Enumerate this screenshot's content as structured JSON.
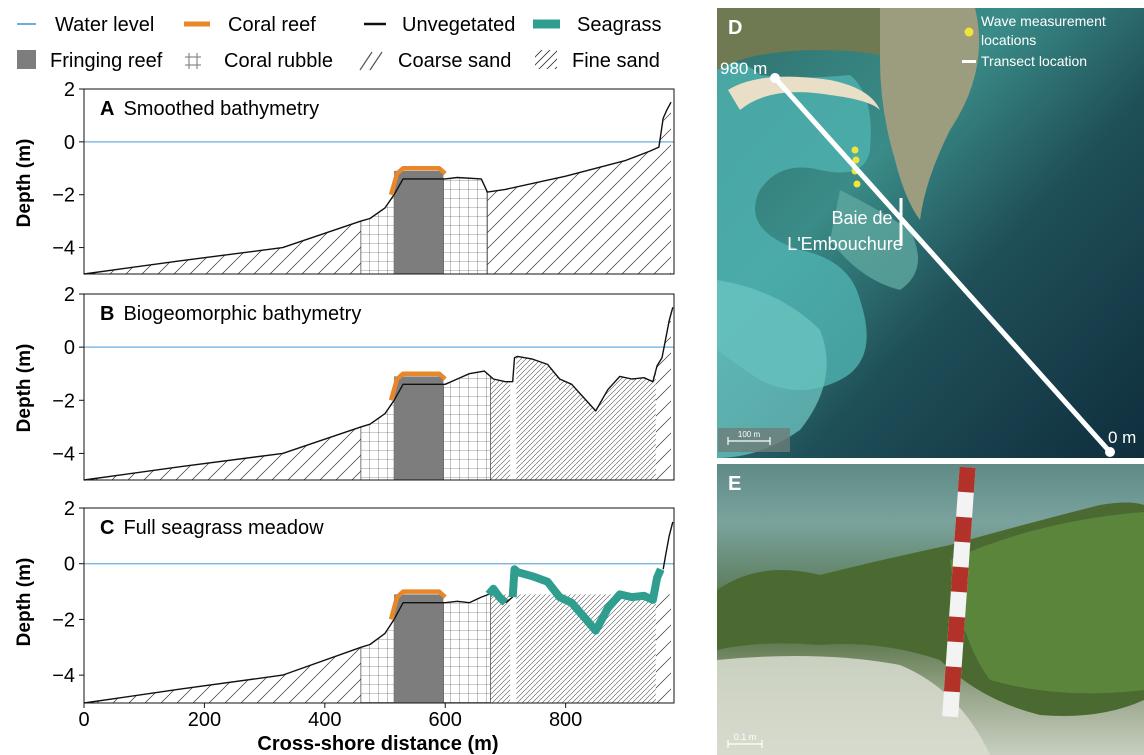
{
  "legend": {
    "water_level": "Water level",
    "coral_reef": "Coral reef",
    "unvegetated": "Unvegetated",
    "seagrass": "Seagrass",
    "fringing_reef": "Fringing reef",
    "coral_rubble": "Coral rubble",
    "coarse_sand": "Coarse sand",
    "fine_sand": "Fine sand"
  },
  "colors": {
    "water": "#6aaedc",
    "coral": "#e8872a",
    "unvegetated": "#111111",
    "seagrass": "#2f9e8f",
    "fringing": "#7d7d7d"
  },
  "axes": {
    "ylabel": "Depth (m)",
    "xlabel": "Cross-shore distance (m)",
    "xticks": [
      "0",
      "200",
      "400",
      "600",
      "800"
    ],
    "yticks": [
      "2",
      "0",
      "−2",
      "−4"
    ]
  },
  "photos": {
    "d": {
      "letter": "D",
      "legend_wave": "Wave measurement",
      "legend_wave2": "locations",
      "legend_transect": "Transect location",
      "label_980": "980 m",
      "label_0": "0 m",
      "place_line1": "Baie de",
      "place_line2": "L'Embouchure",
      "scale": "100 m"
    },
    "e": {
      "letter": "E",
      "scale": "0.1 m"
    }
  },
  "chart_data": [
    {
      "type": "line",
      "panel": "A",
      "title": "Smoothed bathymetry",
      "xlabel": "Cross-shore distance (m)",
      "ylabel": "Depth (m)",
      "xlim": [
        0,
        980
      ],
      "ylim": [
        -5,
        2
      ],
      "water_level": 0,
      "series": [
        {
          "name": "Unvegetated",
          "x": [
            0,
            160,
            330,
            460,
            475,
            500,
            515,
            530,
            600,
            620,
            660,
            670,
            700,
            800,
            900,
            940,
            955,
            962,
            968,
            975
          ],
          "y": [
            -5,
            -4.5,
            -4,
            -3,
            -2.9,
            -2.5,
            -2,
            -1.4,
            -1.4,
            -1.35,
            -1.4,
            -1.9,
            -1.8,
            -1.3,
            -0.7,
            -0.35,
            -0.2,
            0.9,
            1.2,
            1.5
          ]
        },
        {
          "name": "Coral reef",
          "x": [
            510,
            520,
            530,
            590,
            600
          ],
          "y": [
            -2,
            -1.2,
            -1,
            -1,
            -1.2
          ]
        }
      ],
      "zones": [
        {
          "type": "Coarse sand",
          "from": 0,
          "to": 460
        },
        {
          "type": "Coral rubble",
          "from": 460,
          "to": 515
        },
        {
          "type": "Fringing reef",
          "from": 515,
          "to": 597
        },
        {
          "type": "Coral rubble",
          "from": 597,
          "to": 670
        },
        {
          "type": "Coarse sand",
          "from": 670,
          "to": 975
        }
      ]
    },
    {
      "type": "line",
      "panel": "B",
      "title": "Biogeomorphic bathymetry",
      "xlabel": "Cross-shore distance (m)",
      "ylabel": "Depth (m)",
      "xlim": [
        0,
        980
      ],
      "ylim": [
        -5,
        2
      ],
      "water_level": 0,
      "series": [
        {
          "name": "Unvegetated",
          "x": [
            0,
            160,
            330,
            460,
            475,
            500,
            515,
            530,
            600,
            620,
            640,
            665,
            680,
            700,
            712,
            715,
            720,
            745,
            770,
            790,
            810,
            830,
            850,
            870,
            890,
            910,
            930,
            945,
            952,
            960,
            966,
            972,
            978
          ],
          "y": [
            -5,
            -4.5,
            -4,
            -3,
            -2.9,
            -2.5,
            -2,
            -1.4,
            -1.4,
            -1.2,
            -1,
            -0.9,
            -1.2,
            -1.3,
            -1.3,
            -0.4,
            -0.35,
            -0.45,
            -0.65,
            -1.2,
            -1.4,
            -1.9,
            -2.4,
            -1.6,
            -1.1,
            -1.2,
            -1.15,
            -1.3,
            -0.7,
            -0.4,
            0.3,
            1.0,
            1.5
          ]
        },
        {
          "name": "Coral reef",
          "x": [
            510,
            520,
            530,
            590,
            600
          ],
          "y": [
            -2,
            -1.2,
            -1,
            -1,
            -1.2
          ]
        }
      ],
      "zones": [
        {
          "type": "Coarse sand",
          "from": 0,
          "to": 460
        },
        {
          "type": "Coral rubble",
          "from": 460,
          "to": 515
        },
        {
          "type": "Fringing reef",
          "from": 515,
          "to": 597
        },
        {
          "type": "Coral rubble",
          "from": 597,
          "to": 675
        },
        {
          "type": "Fine sand",
          "from": 675,
          "to": 708
        },
        {
          "type": "Fine sand",
          "from": 718,
          "to": 950
        },
        {
          "type": "Coarse sand",
          "from": 950,
          "to": 975
        }
      ]
    },
    {
      "type": "line",
      "panel": "C",
      "title": "Full seagrass meadow",
      "xlabel": "Cross-shore distance (m)",
      "ylabel": "Depth (m)",
      "xlim": [
        0,
        980
      ],
      "ylim": [
        -5,
        2
      ],
      "water_level": 0,
      "series": [
        {
          "name": "Unvegetated",
          "x": [
            0,
            160,
            330,
            460,
            475,
            500,
            515,
            530,
            600,
            620,
            640,
            660,
            672
          ],
          "y": [
            -5,
            -4.5,
            -4,
            -3,
            -2.9,
            -2.5,
            -2,
            -1.4,
            -1.4,
            -1.35,
            -1.4,
            -1.2,
            -1.1
          ]
        },
        {
          "name": "Unvegetated",
          "x": [
            700,
            712
          ],
          "y": [
            -1.4,
            -1.2
          ]
        },
        {
          "name": "Unvegetated",
          "x": [
            962,
            966,
            972,
            978
          ],
          "y": [
            -0.2,
            0.3,
            1.0,
            1.5
          ]
        },
        {
          "name": "Coral reef",
          "x": [
            510,
            520,
            530,
            590,
            600
          ],
          "y": [
            -2,
            -1.2,
            -1,
            -1,
            -1.2
          ]
        },
        {
          "name": "Seagrass",
          "x": [
            672,
            680,
            690,
            700
          ],
          "y": [
            -1.1,
            -0.9,
            -1.2,
            -1.4
          ]
        },
        {
          "name": "Seagrass",
          "x": [
            712,
            715,
            720,
            745,
            770,
            790,
            810,
            830,
            850,
            870,
            890,
            910,
            930,
            945,
            952,
            958
          ],
          "y": [
            -1.2,
            -0.2,
            -0.3,
            -0.45,
            -0.65,
            -1.2,
            -1.4,
            -1.9,
            -2.4,
            -1.6,
            -1.1,
            -1.2,
            -1.15,
            -1.3,
            -0.5,
            -0.2
          ]
        }
      ],
      "zones": [
        {
          "type": "Coarse sand",
          "from": 0,
          "to": 460
        },
        {
          "type": "Coral rubble",
          "from": 460,
          "to": 515
        },
        {
          "type": "Fringing reef",
          "from": 515,
          "to": 597
        },
        {
          "type": "Coral rubble",
          "from": 597,
          "to": 675
        },
        {
          "type": "Fine sand",
          "from": 675,
          "to": 708
        },
        {
          "type": "Fine sand",
          "from": 718,
          "to": 950
        },
        {
          "type": "Coarse sand",
          "from": 950,
          "to": 975
        }
      ]
    }
  ]
}
